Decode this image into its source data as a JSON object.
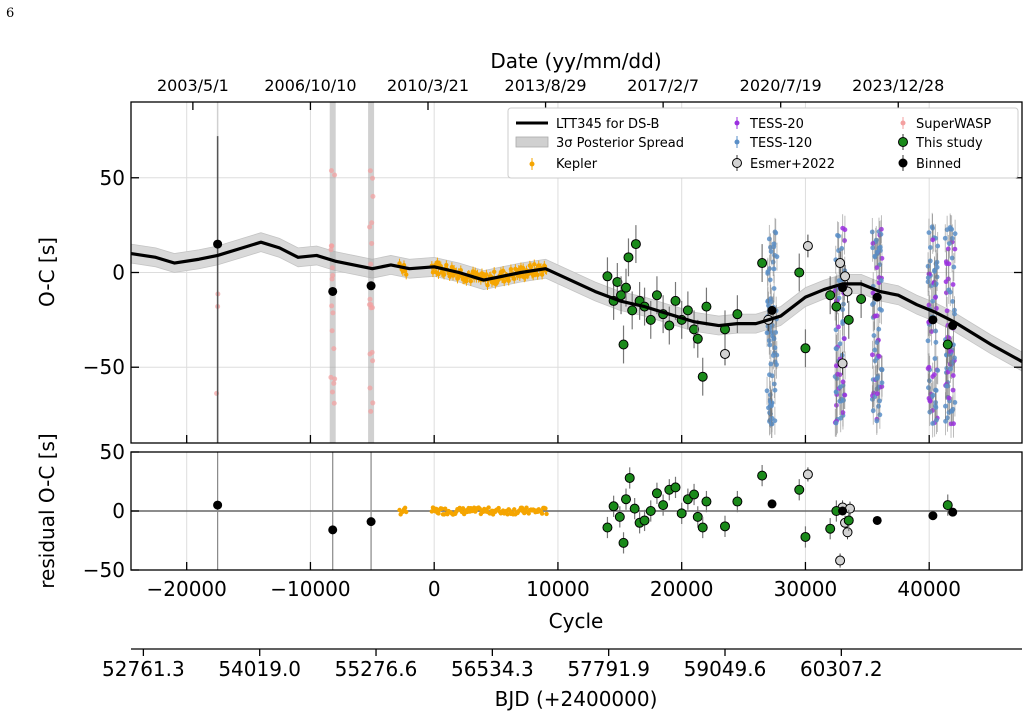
{
  "page_number": "6",
  "chart_data": {
    "type": "scatter",
    "top_axis": {
      "label": "Date (yy/mm/dd)",
      "tick_labels": [
        "2003/5/1",
        "2006/10/10",
        "2010/3/21",
        "2013/8/29",
        "2017/2/7",
        "2020/7/19",
        "2023/12/28"
      ],
      "tick_cycles": [
        -19500,
        -10000,
        -500,
        9000,
        18500,
        28000,
        37500
      ]
    },
    "bottom_axis": {
      "label": "BJD (+2400000)",
      "tick_labels": [
        "52761.3",
        "54019.0",
        "55276.6",
        "56534.3",
        "57791.9",
        "59049.6",
        "60307.2"
      ],
      "tick_cycles": [
        -23500,
        -14100,
        -4700,
        4700,
        14100,
        23500,
        32900
      ]
    },
    "xlabel": "Cycle",
    "xlim": [
      -24500,
      47500
    ],
    "x_ticks": [
      -20000,
      -10000,
      0,
      10000,
      20000,
      30000,
      40000
    ],
    "x_tick_labels": [
      "−20000",
      "−10000",
      "0",
      "10000",
      "20000",
      "30000",
      "40000"
    ],
    "panels": [
      {
        "ylabel": "O-C [s]",
        "ylim": [
          -90,
          90
        ],
        "y_ticks": [
          50,
          0,
          -50
        ],
        "y_tick_labels": [
          "50",
          "0",
          "−50"
        ],
        "grid": true
      },
      {
        "ylabel": "residual O-C [s]",
        "ylim": [
          -50,
          50
        ],
        "y_ticks": [
          50,
          0,
          -50
        ],
        "y_tick_labels": [
          "50",
          "0",
          "−50"
        ],
        "grid": true
      }
    ],
    "legend": {
      "placement": "top-right",
      "entries": [
        {
          "label": "LTT345 for DS-B",
          "kind": "line",
          "color": "#000000"
        },
        {
          "label": "3σ Posterior Spread",
          "kind": "band",
          "color": "#d0d0d0"
        },
        {
          "label": "Kepler",
          "kind": "errorpoint",
          "color": "#f5a500"
        },
        {
          "label": "TESS-20",
          "kind": "errorpoint",
          "color": "#9b30e0"
        },
        {
          "label": "TESS-120",
          "kind": "errorpoint",
          "color": "#5a8fc8"
        },
        {
          "label": "Esmer+2022",
          "kind": "errorpoint",
          "color": "#d3d3d3"
        },
        {
          "label": "SuperWASP",
          "kind": "errorpoint",
          "color": "#f4a0a0"
        },
        {
          "label": "This study",
          "kind": "errorpoint",
          "color": "#1a8a1a"
        },
        {
          "label": "Binned",
          "kind": "errorpoint",
          "color": "#000000"
        }
      ]
    },
    "model_curve": {
      "name": "LTT345 for DS-B",
      "x": [
        -24500,
        -22500,
        -21000,
        -19000,
        -17500,
        -15500,
        -14000,
        -12500,
        -11000,
        -9500,
        -8000,
        -6500,
        -5000,
        -3500,
        -2000,
        0,
        2000,
        4000,
        5500,
        7000,
        9000,
        11000,
        13000,
        15000,
        17000,
        19000,
        21000,
        23000,
        24500,
        26000,
        28000,
        30000,
        31500,
        33000,
        34500,
        36000,
        37500,
        39000,
        40500,
        42000,
        43500,
        45000,
        47500
      ],
      "y": [
        10,
        8,
        5,
        7,
        9,
        13,
        16,
        13,
        8,
        9,
        6,
        4,
        2,
        4,
        2,
        3,
        0,
        -4,
        -2,
        0,
        2,
        -4,
        -10,
        -15,
        -18,
        -22,
        -26,
        -28,
        -27,
        -27,
        -23,
        -13,
        -9,
        -6,
        -6,
        -10,
        -12,
        -17,
        -21,
        -26,
        -32,
        -38,
        -47
      ],
      "band_halfwidth": 5
    },
    "binned_oc": {
      "x": [
        -17500,
        -8200,
        -5100,
        27300,
        33000,
        35800,
        40300,
        41900
      ],
      "y": [
        15,
        -10,
        -7,
        -20,
        -8,
        -13,
        -25,
        -28
      ]
    },
    "binned_residual": {
      "x": [
        -17500,
        -8200,
        -5100,
        27300,
        33000,
        35800,
        40300,
        41900
      ],
      "y": [
        5,
        -16,
        -9,
        6,
        0,
        -8,
        -4,
        -1
      ]
    },
    "this_study_oc": {
      "x": [
        14000,
        14500,
        14800,
        15100,
        15300,
        15500,
        15700,
        16000,
        16300,
        16600,
        17000,
        17500,
        18000,
        18500,
        19000,
        19500,
        20000,
        20500,
        21000,
        21300,
        21700,
        22000,
        23500,
        24500,
        26500,
        29500,
        30000,
        32000,
        32500,
        33500,
        34500,
        41500
      ],
      "y": [
        -2,
        -15,
        -5,
        -12,
        -38,
        -8,
        8,
        -20,
        15,
        -15,
        -18,
        -25,
        -12,
        -22,
        -28,
        -15,
        -25,
        -20,
        -30,
        -35,
        -55,
        -18,
        -30,
        -22,
        5,
        0,
        -40,
        -12,
        -18,
        -25,
        -14,
        -38
      ]
    },
    "this_study_residual": {
      "x": [
        14000,
        14500,
        15000,
        15300,
        15500,
        15800,
        16200,
        16600,
        17000,
        17500,
        18000,
        18500,
        19000,
        19500,
        20000,
        20500,
        21000,
        21300,
        21700,
        22000,
        23500,
        24500,
        26500,
        29500,
        30000,
        32000,
        32500,
        33500,
        41500
      ],
      "y": [
        -14,
        4,
        -5,
        -27,
        10,
        28,
        2,
        -10,
        -8,
        0,
        15,
        5,
        18,
        20,
        -2,
        10,
        14,
        -5,
        -14,
        8,
        -13,
        8,
        30,
        18,
        -22,
        -15,
        0,
        -8,
        5
      ]
    },
    "esmer2022_oc": {
      "x": [
        23500,
        27000,
        30200,
        32800,
        33000,
        33200,
        33400
      ],
      "y": [
        -43,
        -25,
        14,
        5,
        -48,
        -2,
        -10
      ]
    },
    "esmer2022_residual": {
      "x": [
        30200,
        32800,
        33000,
        33200,
        33400,
        33600
      ],
      "y": [
        31,
        -42,
        3,
        -10,
        -18,
        2
      ]
    },
    "kepler_span": [
      -2800,
      9100
    ],
    "tess_sectors": [
      27300,
      32800,
      35800,
      40300,
      41700
    ],
    "superwasp_span": [
      -18000,
      -5000
    ]
  }
}
